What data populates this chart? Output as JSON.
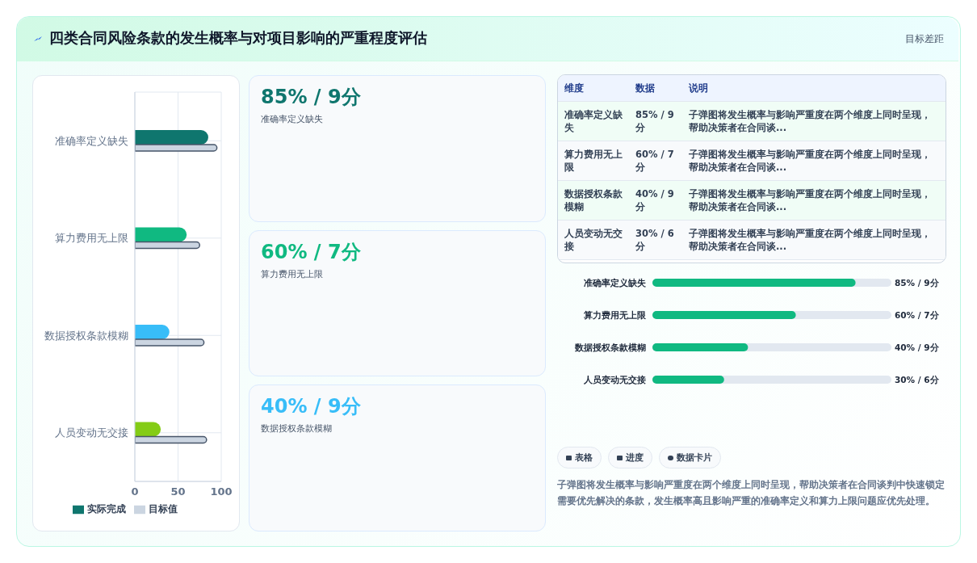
{
  "chart_data": [
    {
      "type": "bar",
      "title": "四类合同风险条款的发生概率与对项目影响的严重程度评估",
      "annotations": [
        "目标差距"
      ],
      "orientation": "horizontal",
      "categories": [
        "准确率定义缺失",
        "算力费用无上限",
        "数据授权条款模糊",
        "人员变动无交接"
      ],
      "series": [
        {
          "name": "实际完成",
          "color": "#0f766e",
          "colors": [
            "#0f766e",
            "#10b981",
            "#38bdf8",
            "#84cc16"
          ],
          "values": [
            85,
            60,
            40,
            30
          ]
        },
        {
          "name": "目标值",
          "color": "#cbd5e1",
          "values": [
            95,
            75,
            80,
            83
          ]
        }
      ],
      "xlim": [
        0,
        100
      ],
      "xticks": [
        0,
        50,
        100
      ],
      "grid": true,
      "legend": "bottom"
    },
    {
      "type": "other",
      "colors": [
        "#0f766e",
        "#10b981",
        "#38bdf8"
      ],
      "annotations": [
        "85% / 9分",
        "准确率定义缺失",
        "60% / 7分",
        "算力费用无上限",
        "40% / 9分",
        "数据授权条款模糊"
      ]
    },
    {
      "type": "other",
      "annotations": [
        "维度",
        "数据",
        "说明",
        "准确率定义缺失",
        "85% / 9分",
        "子弹图将发生概率与影响严重度在两个维度上同时呈现，帮助决策者在合同谈...",
        "算力费用无上限",
        "60% / 7分",
        "子弹图将发生概率与影响严重度在两个维度上同时呈现，帮助决策者在合同谈...",
        "数据授权条款模糊",
        "40% / 9分",
        "子弹图将发生概率与影响严重度在两个维度上同时呈现，帮助决策者在合同谈...",
        "人员变动无交接",
        "30% / 6分",
        "子弹图将发生概率与影响严重度在两个维度上同时呈现，帮助决策者在合同谈..."
      ]
    },
    {
      "type": "bar",
      "orientation": "horizontal",
      "categories": [
        "准确率定义缺失",
        "算力费用无上限",
        "数据授权条款模糊",
        "人员变动无交接"
      ],
      "values": [
        85,
        60,
        40,
        30
      ],
      "color": "#10b981",
      "xlim": [
        0,
        100
      ],
      "value_labels": [
        "85% / 9分",
        "60% / 7分",
        "40% / 9分",
        "30% / 6分"
      ],
      "tick_labels": "y"
    },
    {
      "type": "other",
      "annotations": [
        "表格",
        "进度",
        "数据卡片",
        "子弹图将发生概率与影响严重度在两个维度上同时呈现，帮助决策者在合同谈判中快速锁定需要优先解决的条款，发生概率高且影响严重的准确率定义和算力上限问题应优先处理。"
      ]
    }
  ]
}
